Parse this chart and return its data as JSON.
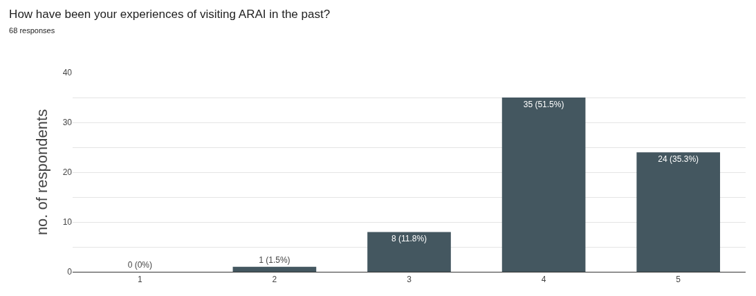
{
  "chart_data": {
    "type": "bar",
    "title": "How have been your experiences of visiting ARAI in the past?",
    "subtitle": "68 responses",
    "ylabel": "no. of respondents",
    "categories": [
      "1",
      "2",
      "3",
      "4",
      "5"
    ],
    "values": [
      0,
      1,
      8,
      35,
      24
    ],
    "value_labels": [
      "0 (0%)",
      "1 (1.5%)",
      "8 (11.8%)",
      "35 (51.5%)",
      "24 (35.3%)"
    ],
    "color": "#445760",
    "ylim": [
      0,
      40
    ],
    "yticks": [
      0,
      {
        "value": 5,
        "label": null
      },
      10,
      {
        "value": 15,
        "label": null
      },
      20,
      {
        "value": 25,
        "label": null
      },
      30,
      {
        "value": 35,
        "label": null
      },
      40
    ],
    "grid": "y",
    "legend": false
  }
}
